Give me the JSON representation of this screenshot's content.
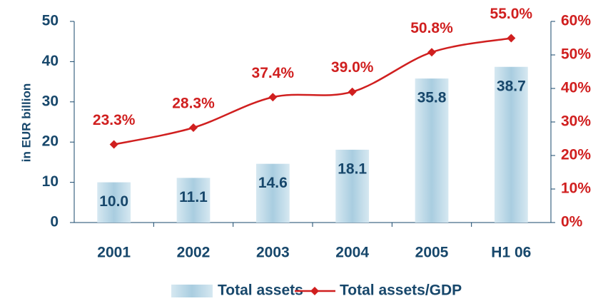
{
  "chart_data": {
    "type": "bar_line",
    "y_axis_label": "in EUR billion",
    "categories": [
      "2001",
      "2002",
      "2003",
      "2004",
      "2005",
      "H1 06"
    ],
    "series": [
      {
        "name": "Total assets",
        "type": "bar",
        "color": "#b9d7e6",
        "values": [
          10.0,
          11.1,
          14.6,
          18.1,
          35.8,
          38.7
        ],
        "value_labels": [
          "10.0",
          "11.1",
          "14.6",
          "18.1",
          "35.8",
          "38.7"
        ]
      },
      {
        "name": "Total assets/GDP",
        "type": "line",
        "axis": "y2",
        "color": "#d01f1f",
        "values": [
          23.3,
          28.3,
          37.4,
          39.0,
          50.8,
          55.0
        ],
        "value_labels": [
          "23.3%",
          "28.3%",
          "37.4%",
          "39.0%",
          "50.8%",
          "55.0%"
        ]
      }
    ],
    "ylim": [
      0,
      50
    ],
    "yticks": [
      0,
      10,
      20,
      30,
      40,
      50
    ],
    "y2lim": [
      0,
      60
    ],
    "y2ticks": [
      {
        "value": 0,
        "label": "0%"
      },
      {
        "value": 10,
        "label": "10%"
      },
      {
        "value": 20,
        "label": "20%"
      },
      {
        "value": 30,
        "label": "30%"
      },
      {
        "value": 40,
        "label": "40%"
      },
      {
        "value": 50,
        "label": "50%"
      },
      {
        "value": 60,
        "label": "60%"
      }
    ],
    "legend": "bottom",
    "grid": false
  }
}
